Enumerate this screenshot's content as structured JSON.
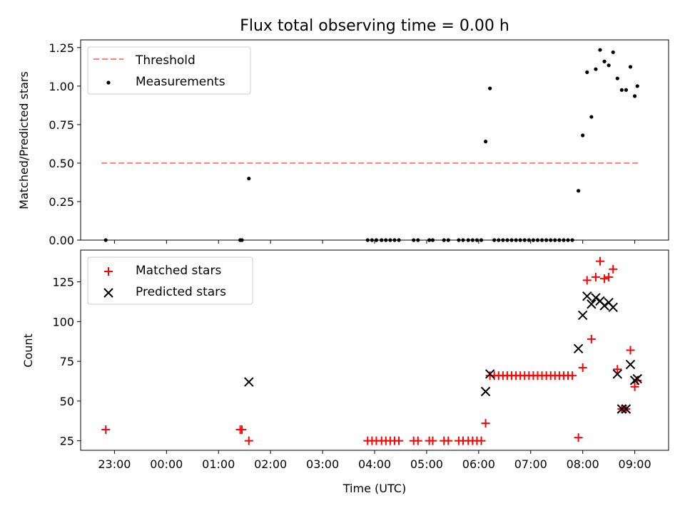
{
  "title": "Flux total observing time = 0.00 h",
  "xlabel": "Time (UTC)",
  "x_ticks": [
    "23:00",
    "00:00",
    "01:00",
    "02:00",
    "03:00",
    "04:00",
    "05:00",
    "06:00",
    "07:00",
    "08:00",
    "09:00"
  ],
  "colors": {
    "threshold": "#ff7f7f",
    "measurement": "#000000",
    "matched": "#ff0000",
    "predicted": "#000000"
  },
  "chart_data": [
    {
      "type": "scatter",
      "ylabel": "Matched/Predicted stars",
      "ylim": [
        0,
        1.3
      ],
      "y_ticks": [
        "0.00",
        "0.25",
        "0.50",
        "0.75",
        "1.00",
        "1.25"
      ],
      "legend_placement": "top-left",
      "threshold": {
        "name": "Threshold",
        "value": 0.5,
        "x_range": [
          "22:45",
          "09:05"
        ]
      },
      "series": [
        {
          "name": "Measurements",
          "points": [
            [
              "22:50",
              0
            ],
            [
              "01:25",
              0
            ],
            [
              "01:27",
              0
            ],
            [
              "01:35",
              0.4
            ],
            [
              "03:52",
              0
            ],
            [
              "03:57",
              0
            ],
            [
              "04:02",
              0
            ],
            [
              "04:08",
              0
            ],
            [
              "04:13",
              0
            ],
            [
              "04:18",
              0
            ],
            [
              "04:23",
              0
            ],
            [
              "04:28",
              0
            ],
            [
              "04:45",
              0
            ],
            [
              "04:50",
              0
            ],
            [
              "05:03",
              0
            ],
            [
              "05:07",
              0
            ],
            [
              "05:20",
              0
            ],
            [
              "05:25",
              0
            ],
            [
              "05:37",
              0
            ],
            [
              "05:42",
              0
            ],
            [
              "05:48",
              0
            ],
            [
              "05:53",
              0
            ],
            [
              "05:58",
              0
            ],
            [
              "06:03",
              0
            ],
            [
              "06:08",
              0.64
            ],
            [
              "06:13",
              0.985
            ],
            [
              "06:18",
              0
            ],
            [
              "06:23",
              0
            ],
            [
              "06:28",
              0
            ],
            [
              "06:33",
              0
            ],
            [
              "06:38",
              0
            ],
            [
              "06:43",
              0
            ],
            [
              "06:48",
              0
            ],
            [
              "06:53",
              0
            ],
            [
              "06:58",
              0
            ],
            [
              "07:03",
              0
            ],
            [
              "07:08",
              0
            ],
            [
              "07:13",
              0
            ],
            [
              "07:18",
              0
            ],
            [
              "07:23",
              0
            ],
            [
              "07:28",
              0
            ],
            [
              "07:33",
              0
            ],
            [
              "07:38",
              0
            ],
            [
              "07:43",
              0
            ],
            [
              "07:48",
              0
            ],
            [
              "07:55",
              0.32
            ],
            [
              "08:00",
              0.68
            ],
            [
              "08:05",
              1.09
            ],
            [
              "08:10",
              0.8
            ],
            [
              "08:15",
              1.11
            ],
            [
              "08:20",
              1.235
            ],
            [
              "08:25",
              1.16
            ],
            [
              "08:30",
              1.135
            ],
            [
              "08:35",
              1.22
            ],
            [
              "08:40",
              1.05
            ],
            [
              "08:45",
              0.975
            ],
            [
              "08:50",
              0.975
            ],
            [
              "08:55",
              1.125
            ],
            [
              "09:00",
              0.935
            ],
            [
              "09:03",
              1.0
            ]
          ]
        }
      ]
    },
    {
      "type": "scatter",
      "ylabel": "Count",
      "ylim": [
        19,
        145
      ],
      "y_ticks": [
        "25",
        "50",
        "75",
        "100",
        "125"
      ],
      "legend_placement": "top-left",
      "series": [
        {
          "name": "Matched stars",
          "points": [
            [
              "22:50",
              32
            ],
            [
              "01:25",
              32
            ],
            [
              "01:27",
              32
            ],
            [
              "01:35",
              25
            ],
            [
              "03:52",
              25
            ],
            [
              "03:57",
              25
            ],
            [
              "04:02",
              25
            ],
            [
              "04:08",
              25
            ],
            [
              "04:13",
              25
            ],
            [
              "04:18",
              25
            ],
            [
              "04:23",
              25
            ],
            [
              "04:28",
              25
            ],
            [
              "04:45",
              25
            ],
            [
              "04:50",
              25
            ],
            [
              "05:03",
              25
            ],
            [
              "05:07",
              25
            ],
            [
              "05:20",
              25
            ],
            [
              "05:25",
              25
            ],
            [
              "05:37",
              25
            ],
            [
              "05:42",
              25
            ],
            [
              "05:48",
              25
            ],
            [
              "05:53",
              25
            ],
            [
              "05:58",
              25
            ],
            [
              "06:03",
              25
            ],
            [
              "06:08",
              36
            ],
            [
              "06:13",
              66
            ],
            [
              "06:18",
              66
            ],
            [
              "06:23",
              66
            ],
            [
              "06:28",
              66
            ],
            [
              "06:33",
              66
            ],
            [
              "06:38",
              66
            ],
            [
              "06:43",
              66
            ],
            [
              "06:48",
              66
            ],
            [
              "06:53",
              66
            ],
            [
              "06:58",
              66
            ],
            [
              "07:03",
              66
            ],
            [
              "07:08",
              66
            ],
            [
              "07:13",
              66
            ],
            [
              "07:18",
              66
            ],
            [
              "07:23",
              66
            ],
            [
              "07:28",
              66
            ],
            [
              "07:33",
              66
            ],
            [
              "07:38",
              66
            ],
            [
              "07:43",
              66
            ],
            [
              "07:48",
              66
            ],
            [
              "07:55",
              27
            ],
            [
              "08:00",
              71
            ],
            [
              "08:05",
              126
            ],
            [
              "08:10",
              89
            ],
            [
              "08:15",
              128
            ],
            [
              "08:20",
              138
            ],
            [
              "08:25",
              127
            ],
            [
              "08:30",
              128
            ],
            [
              "08:35",
              133
            ],
            [
              "08:40",
              70
            ],
            [
              "08:45",
              45
            ],
            [
              "08:50",
              45
            ],
            [
              "08:55",
              82
            ],
            [
              "09:00",
              59
            ],
            [
              "09:03",
              63
            ]
          ]
        },
        {
          "name": "Predicted stars",
          "points": [
            [
              "01:35",
              62
            ],
            [
              "06:08",
              56
            ],
            [
              "06:13",
              67
            ],
            [
              "07:55",
              83
            ],
            [
              "08:00",
              104
            ],
            [
              "08:05",
              116
            ],
            [
              "08:10",
              111
            ],
            [
              "08:15",
              115
            ],
            [
              "08:20",
              113
            ],
            [
              "08:25",
              110
            ],
            [
              "08:30",
              112
            ],
            [
              "08:35",
              109
            ],
            [
              "08:40",
              67
            ],
            [
              "08:45",
              45
            ],
            [
              "08:50",
              45
            ],
            [
              "08:55",
              73
            ],
            [
              "09:00",
              63
            ],
            [
              "09:03",
              64
            ]
          ]
        }
      ]
    }
  ]
}
